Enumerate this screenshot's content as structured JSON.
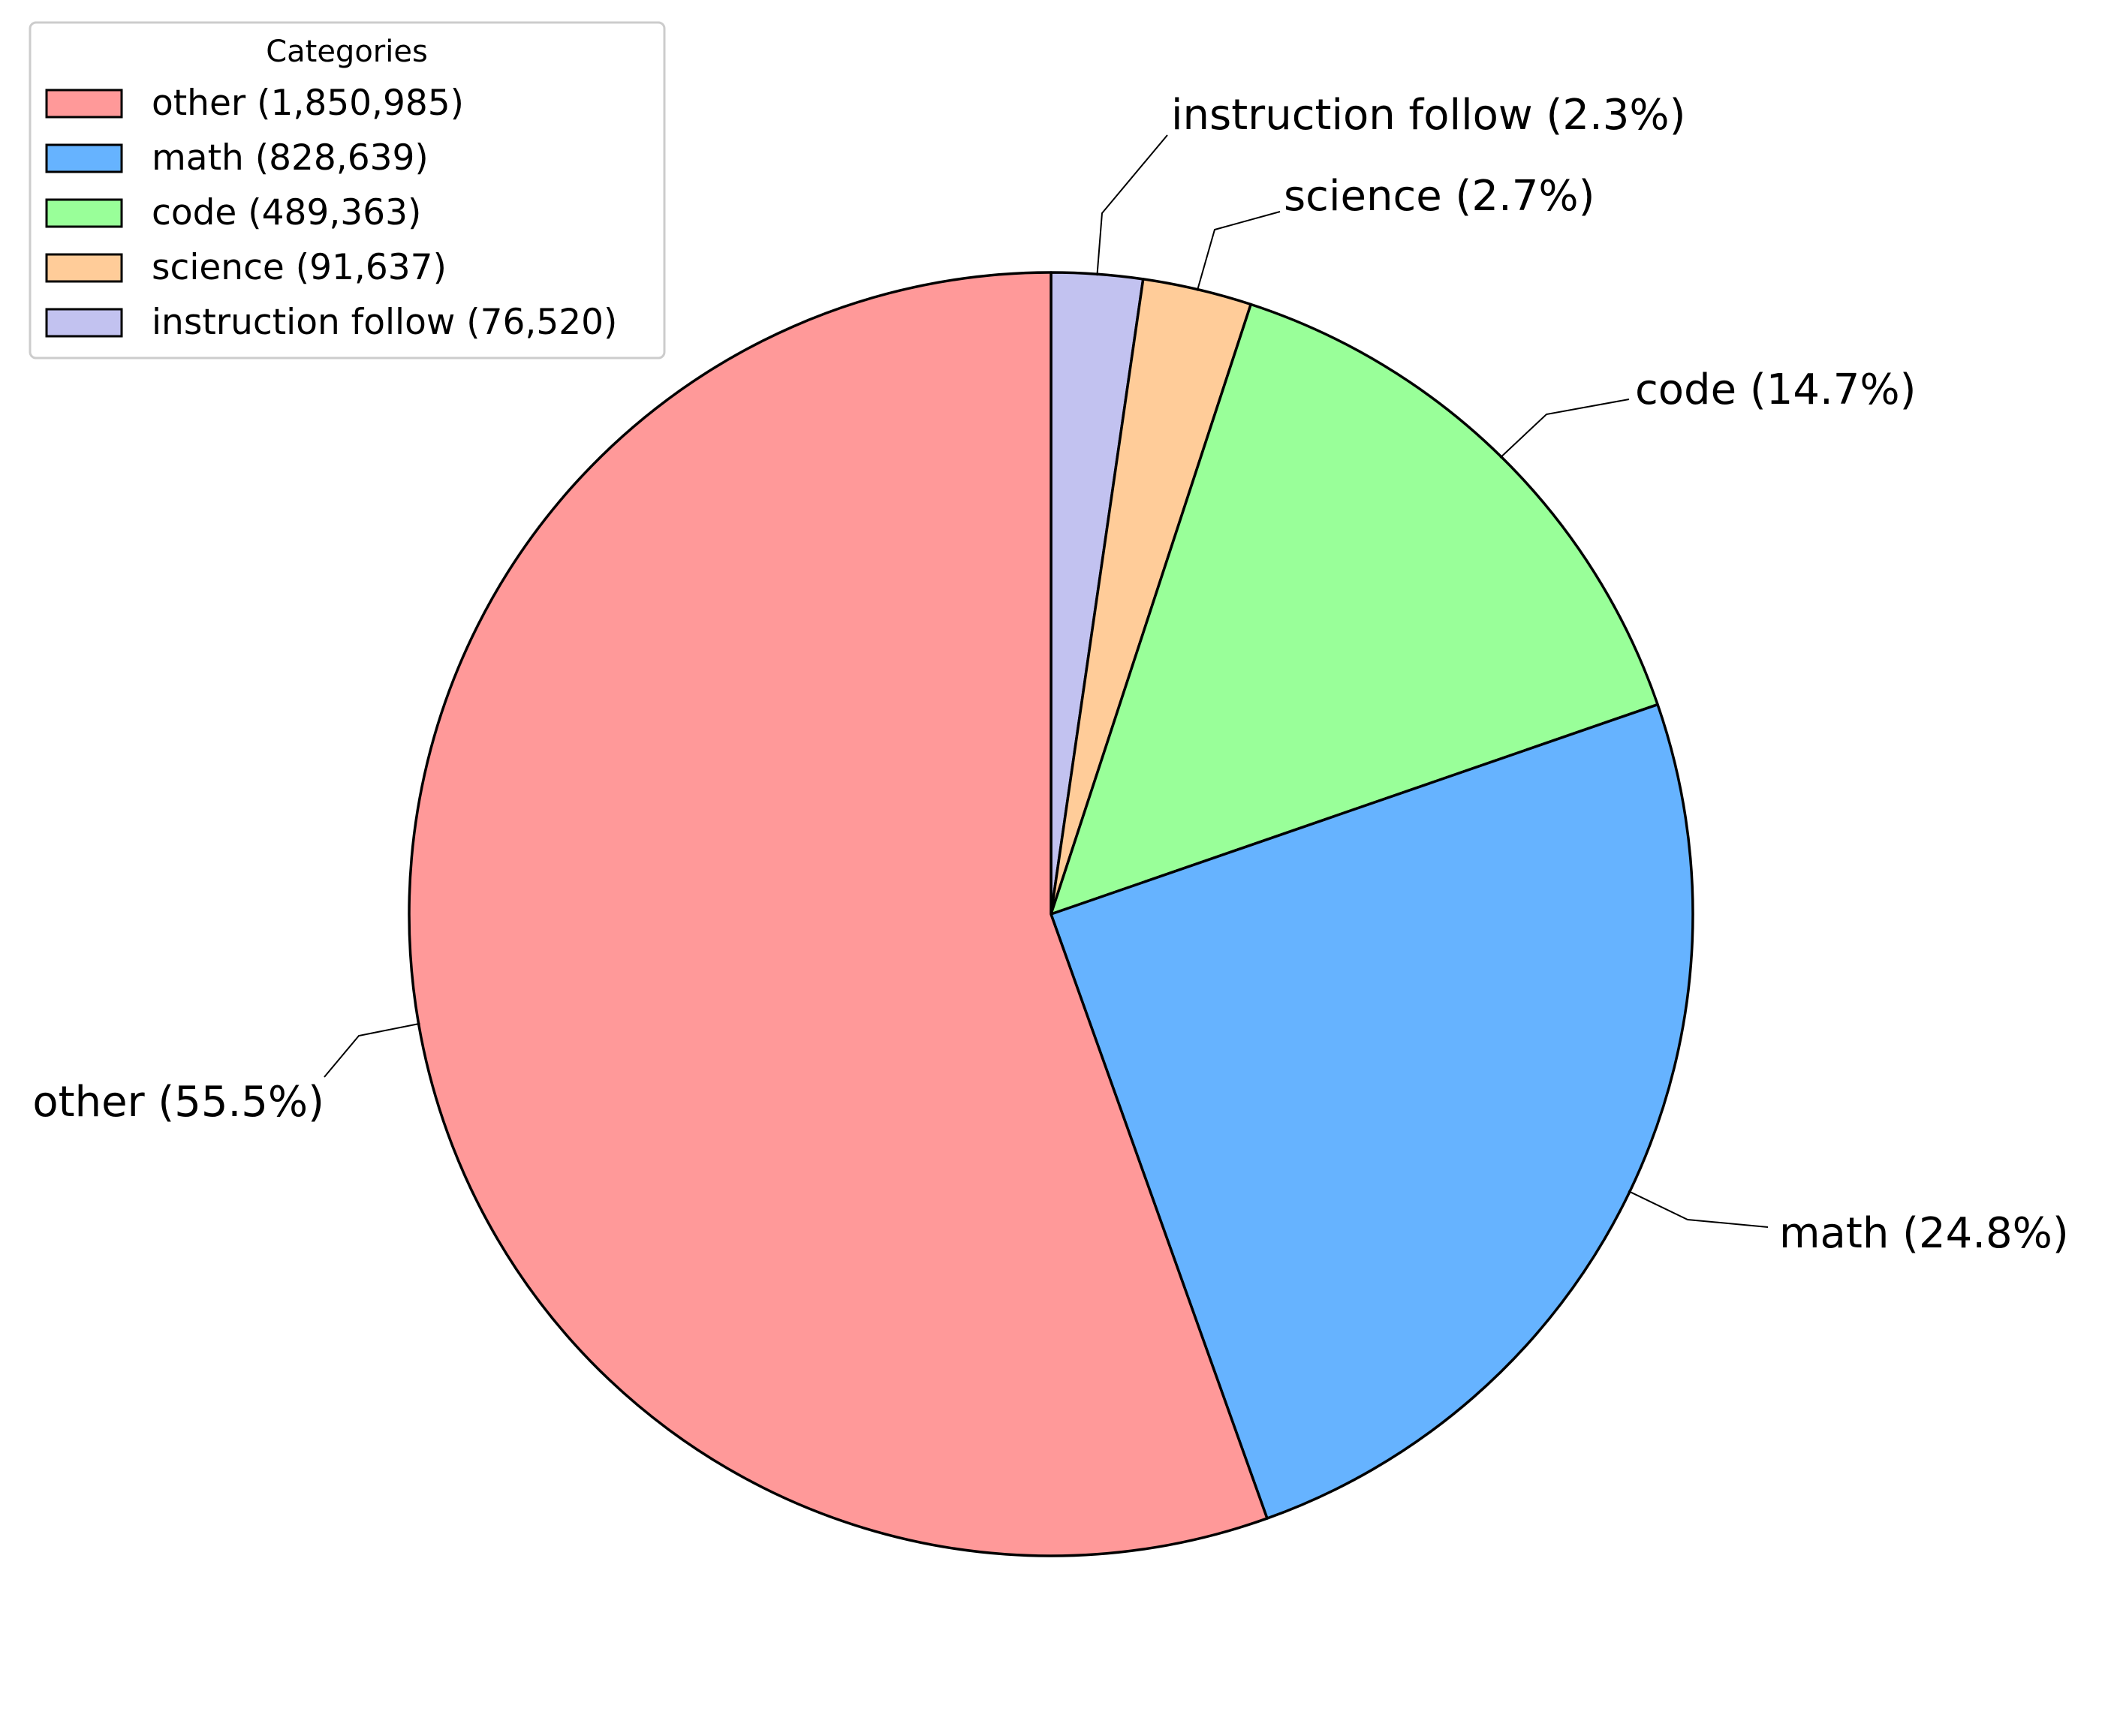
{
  "chart_data": {
    "type": "pie",
    "start_angle_deg": 90,
    "direction": "clockwise",
    "legend": {
      "title": "Categories",
      "position": "top-left"
    },
    "slices": [
      {
        "name": "instruction follow",
        "value": 76520,
        "percent_label": "instruction follow (2.3%)",
        "legend_label": "instruction follow (76,520)",
        "color": "#c2c2f0"
      },
      {
        "name": "science",
        "value": 91637,
        "percent_label": "science (2.7%)",
        "legend_label": "science (91,637)",
        "color": "#ffcc99"
      },
      {
        "name": "code",
        "value": 489363,
        "percent_label": "code (14.7%)",
        "legend_label": "code (489,363)",
        "color": "#99ff99"
      },
      {
        "name": "math",
        "value": 828639,
        "percent_label": "math (24.8%)",
        "legend_label": "math (828,639)",
        "color": "#66b3ff"
      },
      {
        "name": "other",
        "value": 1850985,
        "percent_label": "other (55.5%)",
        "legend_label": "other (1,850,985)",
        "color": "#ff9999"
      }
    ],
    "legend_order": [
      "other",
      "math",
      "code",
      "science",
      "instruction follow"
    ]
  }
}
